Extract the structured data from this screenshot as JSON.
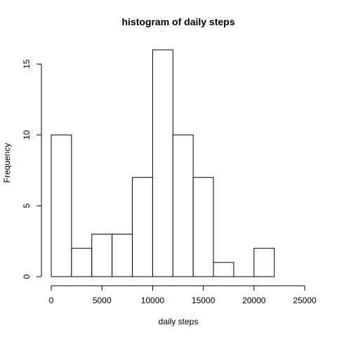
{
  "chart_data": {
    "type": "bar",
    "title": "histogram of daily steps",
    "xlabel": "daily steps",
    "ylabel": "Frequency",
    "bin_edges": [
      0,
      2000,
      4000,
      6000,
      8000,
      10000,
      12000,
      14000,
      16000,
      18000,
      20000,
      22000
    ],
    "values": [
      10,
      2,
      3,
      3,
      7,
      16,
      10,
      7,
      1,
      0,
      2
    ],
    "xlim": [
      0,
      25000
    ],
    "ylim": [
      0,
      16
    ],
    "xticks": [
      0,
      5000,
      10000,
      15000,
      20000,
      25000
    ],
    "yticks": [
      0,
      5,
      10,
      15
    ],
    "grid": false,
    "bar_fill": "#ffffff",
    "bar_stroke": "#000000"
  }
}
